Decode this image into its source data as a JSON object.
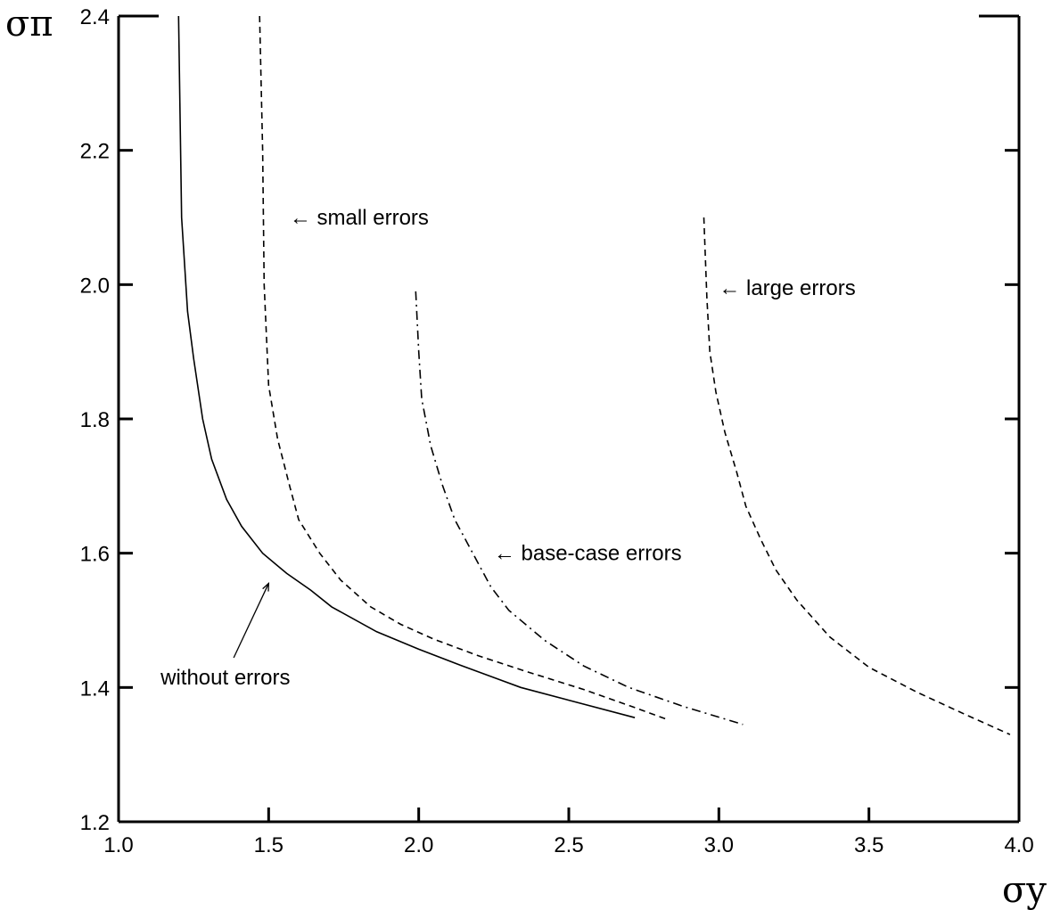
{
  "chart_data": {
    "type": "line",
    "title": "",
    "xlabel": "σy",
    "ylabel": "σπ",
    "xlim": [
      1.0,
      4.0
    ],
    "ylim": [
      1.2,
      2.4
    ],
    "xticks": [
      "1.0",
      "1.5",
      "2.0",
      "2.5",
      "3.0",
      "3.5",
      "4.0"
    ],
    "yticks": [
      "1.2",
      "1.4",
      "1.6",
      "1.8",
      "2.0",
      "2.2",
      "2.4"
    ],
    "grid": false,
    "series": [
      {
        "name": "without errors",
        "style": "solid",
        "points": [
          [
            1.2,
            2.4
          ],
          [
            1.21,
            2.1
          ],
          [
            1.23,
            1.96
          ],
          [
            1.25,
            1.89
          ],
          [
            1.28,
            1.8
          ],
          [
            1.31,
            1.74
          ],
          [
            1.36,
            1.68
          ],
          [
            1.41,
            1.64
          ],
          [
            1.48,
            1.6
          ],
          [
            1.56,
            1.57
          ],
          [
            1.64,
            1.545
          ],
          [
            1.71,
            1.52
          ],
          [
            1.86,
            1.483
          ],
          [
            2.0,
            1.457
          ],
          [
            2.14,
            1.433
          ],
          [
            2.34,
            1.4
          ],
          [
            2.5,
            1.381
          ],
          [
            2.72,
            1.355
          ]
        ]
      },
      {
        "name": "small errors",
        "style": "dashed",
        "points": [
          [
            1.47,
            2.4
          ],
          [
            1.48,
            2.2
          ],
          [
            1.485,
            2.0
          ],
          [
            1.5,
            1.85
          ],
          [
            1.53,
            1.77
          ],
          [
            1.57,
            1.7
          ],
          [
            1.6,
            1.65
          ],
          [
            1.67,
            1.6
          ],
          [
            1.74,
            1.56
          ],
          [
            1.84,
            1.52
          ],
          [
            1.94,
            1.494
          ],
          [
            2.05,
            1.472
          ],
          [
            2.2,
            1.447
          ],
          [
            2.35,
            1.425
          ],
          [
            2.55,
            1.397
          ],
          [
            2.72,
            1.37
          ],
          [
            2.83,
            1.352
          ]
        ]
      },
      {
        "name": "base-case errors",
        "style": "dashdot",
        "points": [
          [
            1.99,
            1.99
          ],
          [
            2.0,
            1.9
          ],
          [
            2.01,
            1.83
          ],
          [
            2.04,
            1.76
          ],
          [
            2.08,
            1.7
          ],
          [
            2.12,
            1.65
          ],
          [
            2.18,
            1.6
          ],
          [
            2.24,
            1.55
          ],
          [
            2.3,
            1.515
          ],
          [
            2.42,
            1.47
          ],
          [
            2.55,
            1.432
          ],
          [
            2.7,
            1.4
          ],
          [
            2.88,
            1.372
          ],
          [
            3.08,
            1.345
          ]
        ]
      },
      {
        "name": "large errors",
        "style": "dashed",
        "points": [
          [
            2.95,
            2.1
          ],
          [
            2.96,
            1.98
          ],
          [
            2.97,
            1.9
          ],
          [
            2.99,
            1.84
          ],
          [
            3.02,
            1.78
          ],
          [
            3.06,
            1.72
          ],
          [
            3.09,
            1.67
          ],
          [
            3.14,
            1.62
          ],
          [
            3.19,
            1.575
          ],
          [
            3.26,
            1.53
          ],
          [
            3.37,
            1.475
          ],
          [
            3.5,
            1.43
          ],
          [
            3.66,
            1.393
          ],
          [
            3.82,
            1.36
          ],
          [
            3.97,
            1.33
          ]
        ]
      }
    ],
    "annotations": [
      {
        "text": "small errors",
        "arrow": "←",
        "x": 1.57,
        "y": 2.1
      },
      {
        "text": "large errors",
        "arrow": "←",
        "x": 3.0,
        "y": 1.995
      },
      {
        "text": "base-case errors",
        "arrow": "←",
        "x": 2.25,
        "y": 1.6
      },
      {
        "text": "without errors",
        "x": 1.14,
        "y": 1.415,
        "arrow_to": [
          1.5,
          1.555
        ]
      }
    ]
  }
}
